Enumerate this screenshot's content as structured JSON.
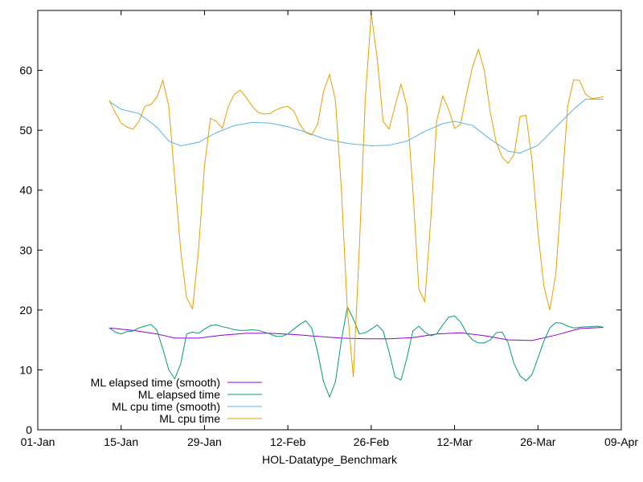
{
  "chart_data": {
    "type": "line",
    "xlabel": "HOL-Datatype_Benchmark",
    "ylabel": "",
    "title": "",
    "xlim": [
      "2018-01-01",
      "2018-04-09"
    ],
    "ylim": [
      0,
      70
    ],
    "x_ticks": [
      {
        "date": "2018-01-01",
        "label": "01-Jan"
      },
      {
        "date": "2018-01-15",
        "label": "15-Jan"
      },
      {
        "date": "2018-01-29",
        "label": "29-Jan"
      },
      {
        "date": "2018-02-12",
        "label": "12-Feb"
      },
      {
        "date": "2018-02-26",
        "label": "26-Feb"
      },
      {
        "date": "2018-03-12",
        "label": "12-Mar"
      },
      {
        "date": "2018-03-26",
        "label": "26-Mar"
      },
      {
        "date": "2018-04-09",
        "label": "09-Apr"
      }
    ],
    "y_ticks": [
      0,
      10,
      20,
      30,
      40,
      50,
      60
    ],
    "grid": false,
    "legend_position": "bottom-left",
    "series": [
      {
        "name": "ML elapsed time (smooth)",
        "color": "#9400d3",
        "points": [
          [
            "2018-01-13",
            17.0
          ],
          [
            "2018-01-17",
            16.6
          ],
          [
            "2018-01-21",
            16.0
          ],
          [
            "2018-01-24",
            15.3
          ],
          [
            "2018-01-28",
            15.3
          ],
          [
            "2018-02-01",
            15.8
          ],
          [
            "2018-02-05",
            16.1
          ],
          [
            "2018-02-09",
            16.1
          ],
          [
            "2018-02-13",
            15.9
          ],
          [
            "2018-02-17",
            15.6
          ],
          [
            "2018-02-21",
            15.3
          ],
          [
            "2018-02-25",
            15.2
          ],
          [
            "2018-03-01",
            15.2
          ],
          [
            "2018-03-05",
            15.4
          ],
          [
            "2018-03-09",
            16.0
          ],
          [
            "2018-03-13",
            16.2
          ],
          [
            "2018-03-17",
            15.7
          ],
          [
            "2018-03-21",
            15.0
          ],
          [
            "2018-03-25",
            14.9
          ],
          [
            "2018-03-29",
            15.8
          ],
          [
            "2018-04-02",
            16.9
          ],
          [
            "2018-04-06",
            17.1
          ]
        ]
      },
      {
        "name": "ML elapsed time",
        "color": "#009e73",
        "points": [
          [
            "2018-01-13",
            17.0
          ],
          [
            "2018-01-14",
            16.3
          ],
          [
            "2018-01-15",
            16.0
          ],
          [
            "2018-01-16",
            16.4
          ],
          [
            "2018-01-17",
            16.5
          ],
          [
            "2018-01-18",
            17.0
          ],
          [
            "2018-01-19",
            17.3
          ],
          [
            "2018-01-20",
            17.6
          ],
          [
            "2018-01-21",
            16.6
          ],
          [
            "2018-01-22",
            13.5
          ],
          [
            "2018-01-23",
            10.0
          ],
          [
            "2018-01-24",
            8.5
          ],
          [
            "2018-01-25",
            11.0
          ],
          [
            "2018-01-26",
            16.0
          ],
          [
            "2018-01-27",
            16.3
          ],
          [
            "2018-01-28",
            16.1
          ],
          [
            "2018-01-29",
            16.8
          ],
          [
            "2018-01-30",
            17.4
          ],
          [
            "2018-01-31",
            17.5
          ],
          [
            "2018-02-01",
            17.2
          ],
          [
            "2018-02-02",
            17.0
          ],
          [
            "2018-02-03",
            16.7
          ],
          [
            "2018-02-04",
            16.6
          ],
          [
            "2018-02-05",
            16.6
          ],
          [
            "2018-02-06",
            16.7
          ],
          [
            "2018-02-07",
            16.6
          ],
          [
            "2018-02-08",
            16.3
          ],
          [
            "2018-02-09",
            16.0
          ],
          [
            "2018-02-10",
            15.6
          ],
          [
            "2018-02-11",
            15.6
          ],
          [
            "2018-02-12",
            16.0
          ],
          [
            "2018-02-13",
            16.8
          ],
          [
            "2018-02-14",
            17.6
          ],
          [
            "2018-02-15",
            18.2
          ],
          [
            "2018-02-16",
            17.0
          ],
          [
            "2018-02-17",
            13.0
          ],
          [
            "2018-02-18",
            8.0
          ],
          [
            "2018-02-19",
            5.5
          ],
          [
            "2018-02-20",
            8.0
          ],
          [
            "2018-02-21",
            15.0
          ],
          [
            "2018-02-22",
            20.5
          ],
          [
            "2018-02-23",
            18.5
          ],
          [
            "2018-02-24",
            16.0
          ],
          [
            "2018-02-25",
            16.2
          ],
          [
            "2018-02-26",
            16.8
          ],
          [
            "2018-02-27",
            17.5
          ],
          [
            "2018-02-28",
            16.5
          ],
          [
            "2018-03-01",
            13.0
          ],
          [
            "2018-03-02",
            8.8
          ],
          [
            "2018-03-03",
            8.3
          ],
          [
            "2018-03-04",
            12.0
          ],
          [
            "2018-03-05",
            16.5
          ],
          [
            "2018-03-06",
            17.3
          ],
          [
            "2018-03-07",
            16.3
          ],
          [
            "2018-03-08",
            15.7
          ],
          [
            "2018-03-09",
            16.0
          ],
          [
            "2018-03-10",
            17.5
          ],
          [
            "2018-03-11",
            18.8
          ],
          [
            "2018-03-12",
            19.0
          ],
          [
            "2018-03-13",
            18.0
          ],
          [
            "2018-03-14",
            16.2
          ],
          [
            "2018-03-15",
            15.0
          ],
          [
            "2018-03-16",
            14.5
          ],
          [
            "2018-03-17",
            14.5
          ],
          [
            "2018-03-18",
            15.0
          ],
          [
            "2018-03-19",
            16.2
          ],
          [
            "2018-03-20",
            16.3
          ],
          [
            "2018-03-21",
            14.5
          ],
          [
            "2018-03-22",
            11.0
          ],
          [
            "2018-03-23",
            9.0
          ],
          [
            "2018-03-24",
            8.2
          ],
          [
            "2018-03-25",
            9.2
          ],
          [
            "2018-03-26",
            12.0
          ],
          [
            "2018-03-27",
            14.8
          ],
          [
            "2018-03-28",
            17.0
          ],
          [
            "2018-03-29",
            17.9
          ],
          [
            "2018-03-30",
            17.8
          ],
          [
            "2018-03-31",
            17.3
          ],
          [
            "2018-04-01",
            17.0
          ],
          [
            "2018-04-02",
            17.1
          ],
          [
            "2018-04-03",
            17.2
          ],
          [
            "2018-04-04",
            17.2
          ],
          [
            "2018-04-05",
            17.3
          ],
          [
            "2018-04-06",
            17.1
          ]
        ]
      },
      {
        "name": "ML cpu time (smooth)",
        "color": "#56b4e9",
        "points": [
          [
            "2018-01-13",
            54.8
          ],
          [
            "2018-01-15",
            53.5
          ],
          [
            "2018-01-18",
            52.8
          ],
          [
            "2018-01-21",
            50.5
          ],
          [
            "2018-01-23",
            48.2
          ],
          [
            "2018-01-25",
            47.4
          ],
          [
            "2018-01-28",
            48.0
          ],
          [
            "2018-01-31",
            49.6
          ],
          [
            "2018-02-03",
            50.8
          ],
          [
            "2018-02-06",
            51.3
          ],
          [
            "2018-02-09",
            51.2
          ],
          [
            "2018-02-12",
            50.6
          ],
          [
            "2018-02-15",
            49.7
          ],
          [
            "2018-02-18",
            48.6
          ],
          [
            "2018-02-22",
            47.8
          ],
          [
            "2018-02-26",
            47.4
          ],
          [
            "2018-03-01",
            47.5
          ],
          [
            "2018-03-04",
            48.2
          ],
          [
            "2018-03-07",
            49.8
          ],
          [
            "2018-03-10",
            51.1
          ],
          [
            "2018-03-12",
            51.5
          ],
          [
            "2018-03-15",
            50.8
          ],
          [
            "2018-03-18",
            48.5
          ],
          [
            "2018-03-21",
            46.5
          ],
          [
            "2018-03-23",
            46.2
          ],
          [
            "2018-03-26",
            47.5
          ],
          [
            "2018-03-29",
            50.5
          ],
          [
            "2018-04-01",
            53.5
          ],
          [
            "2018-04-03",
            55.2
          ],
          [
            "2018-04-06",
            55.2
          ]
        ]
      },
      {
        "name": "ML cpu time",
        "color": "#e69f00",
        "points": [
          [
            "2018-01-13",
            55.0
          ],
          [
            "2018-01-14",
            53.0
          ],
          [
            "2018-01-15",
            51.2
          ],
          [
            "2018-01-16",
            50.5
          ],
          [
            "2018-01-17",
            50.2
          ],
          [
            "2018-01-18",
            51.5
          ],
          [
            "2018-01-19",
            54.0
          ],
          [
            "2018-01-20",
            54.3
          ],
          [
            "2018-01-21",
            55.5
          ],
          [
            "2018-01-22",
            58.3
          ],
          [
            "2018-01-23",
            54.0
          ],
          [
            "2018-01-24",
            42.0
          ],
          [
            "2018-01-25",
            30.0
          ],
          [
            "2018-01-26",
            22.0
          ],
          [
            "2018-01-27",
            20.2
          ],
          [
            "2018-01-28",
            30.0
          ],
          [
            "2018-01-29",
            44.0
          ],
          [
            "2018-01-30",
            52.0
          ],
          [
            "2018-01-31",
            51.5
          ],
          [
            "2018-02-01",
            50.3
          ],
          [
            "2018-02-02",
            54.0
          ],
          [
            "2018-02-03",
            56.0
          ],
          [
            "2018-02-04",
            56.7
          ],
          [
            "2018-02-05",
            55.5
          ],
          [
            "2018-02-06",
            54.0
          ],
          [
            "2018-02-07",
            53.0
          ],
          [
            "2018-02-08",
            52.7
          ],
          [
            "2018-02-09",
            52.8
          ],
          [
            "2018-02-10",
            53.4
          ],
          [
            "2018-02-11",
            53.8
          ],
          [
            "2018-02-12",
            54.0
          ],
          [
            "2018-02-13",
            53.2
          ],
          [
            "2018-02-14",
            51.0
          ],
          [
            "2018-02-15",
            49.6
          ],
          [
            "2018-02-16",
            49.2
          ],
          [
            "2018-02-17",
            51.0
          ],
          [
            "2018-02-18",
            56.5
          ],
          [
            "2018-02-19",
            59.3
          ],
          [
            "2018-02-20",
            55.0
          ],
          [
            "2018-02-21",
            40.0
          ],
          [
            "2018-02-22",
            20.0
          ],
          [
            "2018-02-23",
            8.8
          ],
          [
            "2018-02-24",
            30.0
          ],
          [
            "2018-02-25",
            55.0
          ],
          [
            "2018-02-26",
            69.5
          ],
          [
            "2018-02-27",
            62.0
          ],
          [
            "2018-02-28",
            51.5
          ],
          [
            "2018-03-01",
            50.2
          ],
          [
            "2018-03-02",
            54.0
          ],
          [
            "2018-03-03",
            57.7
          ],
          [
            "2018-03-04",
            54.0
          ],
          [
            "2018-03-05",
            40.0
          ],
          [
            "2018-03-06",
            23.5
          ],
          [
            "2018-03-07",
            21.4
          ],
          [
            "2018-03-08",
            35.0
          ],
          [
            "2018-03-09",
            51.5
          ],
          [
            "2018-03-10",
            55.7
          ],
          [
            "2018-03-11",
            53.5
          ],
          [
            "2018-03-12",
            50.3
          ],
          [
            "2018-03-13",
            51.0
          ],
          [
            "2018-03-14",
            56.0
          ],
          [
            "2018-03-15",
            60.5
          ],
          [
            "2018-03-16",
            63.5
          ],
          [
            "2018-03-17",
            60.0
          ],
          [
            "2018-03-18",
            53.0
          ],
          [
            "2018-03-19",
            48.0
          ],
          [
            "2018-03-20",
            45.5
          ],
          [
            "2018-03-21",
            44.5
          ],
          [
            "2018-03-22",
            46.0
          ],
          [
            "2018-03-23",
            52.3
          ],
          [
            "2018-03-24",
            52.5
          ],
          [
            "2018-03-25",
            45.0
          ],
          [
            "2018-03-26",
            33.0
          ],
          [
            "2018-03-27",
            24.0
          ],
          [
            "2018-03-28",
            20.0
          ],
          [
            "2018-03-29",
            26.0
          ],
          [
            "2018-03-30",
            40.0
          ],
          [
            "2018-03-31",
            54.0
          ],
          [
            "2018-04-01",
            58.4
          ],
          [
            "2018-04-02",
            58.3
          ],
          [
            "2018-04-03",
            56.0
          ],
          [
            "2018-04-04",
            55.3
          ],
          [
            "2018-04-05",
            55.4
          ],
          [
            "2018-04-06",
            55.6
          ]
        ]
      }
    ]
  }
}
